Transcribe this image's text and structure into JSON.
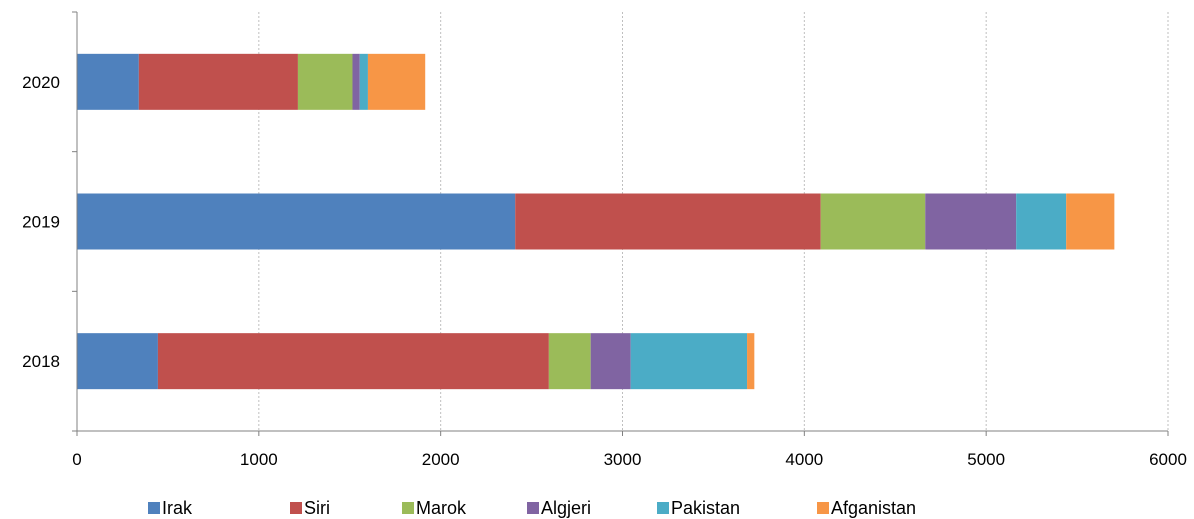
{
  "chart_data": {
    "type": "bar",
    "orientation": "horizontal",
    "stacked": true,
    "categories": [
      "2018",
      "2019",
      "2020"
    ],
    "series": [
      {
        "name": "Irak",
        "color": "#4F81BD",
        "values": [
          445,
          2410,
          340
        ]
      },
      {
        "name": "Siri",
        "color": "#C0504D",
        "values": [
          2150,
          1680,
          875
        ]
      },
      {
        "name": "Marok",
        "color": "#9BBB59",
        "values": [
          230,
          575,
          300
        ]
      },
      {
        "name": "Algjeri",
        "color": "#8064A2",
        "values": [
          220,
          500,
          40
        ]
      },
      {
        "name": "Pakistan",
        "color": "#4BACC6",
        "values": [
          640,
          275,
          45
        ]
      },
      {
        "name": "Afganistan",
        "color": "#F79646",
        "values": [
          40,
          265,
          315
        ]
      }
    ],
    "xlim": [
      0,
      6000
    ],
    "xticks": [
      "0",
      "1000",
      "2000",
      "3000",
      "4000",
      "5000",
      "6000"
    ],
    "grid": "vertical dotted",
    "legend": "bottom",
    "title": "",
    "xlabel": "",
    "ylabel": ""
  }
}
